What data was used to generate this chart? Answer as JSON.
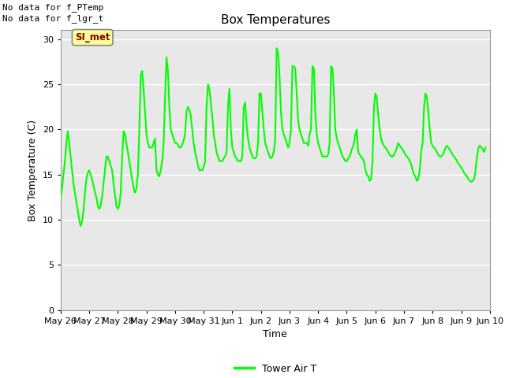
{
  "title": "Box Temperatures",
  "xlabel": "Time",
  "ylabel": "Box Temperature (C)",
  "ylim": [
    0,
    31
  ],
  "yticks": [
    0,
    5,
    10,
    15,
    20,
    25,
    30
  ],
  "bg_color": "#e8e8e8",
  "outer_bg": "#ffffff",
  "line_color": "#00ff00",
  "line_width": 1.5,
  "no_data1": "No data for f_PTemp",
  "no_data2": "No data for f_lgr_t",
  "si_met": "SI_met",
  "legend_label": "Tower Air T",
  "x_labels": [
    "May 26",
    "May 27",
    "May 28",
    "May 29",
    "May 30",
    "May 31",
    "Jun 1",
    "Jun 2",
    "Jun 3",
    "Jun 4",
    "Jun 5",
    "Jun 6",
    "Jun 7",
    "Jun 8",
    "Jun 9",
    "Jun 10"
  ],
  "xdata": [
    0.0,
    0.05,
    0.1,
    0.15,
    0.2,
    0.25,
    0.3,
    0.35,
    0.4,
    0.45,
    0.5,
    0.55,
    0.6,
    0.65,
    0.7,
    0.75,
    0.8,
    0.85,
    0.9,
    0.95,
    1.0,
    1.05,
    1.1,
    1.15,
    1.2,
    1.25,
    1.3,
    1.35,
    1.4,
    1.45,
    1.5,
    1.55,
    1.6,
    1.65,
    1.7,
    1.75,
    1.8,
    1.85,
    1.9,
    1.95,
    2.0,
    2.05,
    2.1,
    2.15,
    2.2,
    2.25,
    2.3,
    2.35,
    2.4,
    2.45,
    2.5,
    2.55,
    2.6,
    2.65,
    2.7,
    2.75,
    2.8,
    2.85,
    2.9,
    2.95,
    3.0,
    3.05,
    3.1,
    3.15,
    3.2,
    3.25,
    3.3,
    3.35,
    3.4,
    3.45,
    3.5,
    3.55,
    3.6,
    3.65,
    3.7,
    3.75,
    3.8,
    3.85,
    3.9,
    3.95,
    4.0,
    4.05,
    4.1,
    4.15,
    4.2,
    4.25,
    4.3,
    4.35,
    4.4,
    4.45,
    4.5,
    4.55,
    4.6,
    4.65,
    4.7,
    4.75,
    4.8,
    4.85,
    4.9,
    4.95,
    5.0,
    5.05,
    5.1,
    5.15,
    5.2,
    5.25,
    5.3,
    5.35,
    5.4,
    5.45,
    5.5,
    5.55,
    5.6,
    5.65,
    5.7,
    5.75,
    5.8,
    5.85,
    5.9,
    5.95,
    6.0,
    6.05,
    6.1,
    6.15,
    6.2,
    6.25,
    6.3,
    6.35,
    6.4,
    6.45,
    6.5,
    6.55,
    6.6,
    6.65,
    6.7,
    6.75,
    6.8,
    6.85,
    6.9,
    6.95,
    7.0,
    7.05,
    7.1,
    7.15,
    7.2,
    7.25,
    7.3,
    7.35,
    7.4,
    7.45,
    7.5,
    7.55,
    7.6,
    7.65,
    7.7,
    7.75,
    7.8,
    7.85,
    7.9,
    7.95,
    8.0,
    8.05,
    8.1,
    8.15,
    8.2,
    8.25,
    8.3,
    8.35,
    8.4,
    8.45,
    8.5,
    8.55,
    8.6,
    8.65,
    8.7,
    8.75,
    8.8,
    8.85,
    8.9,
    8.95,
    9.0,
    9.05,
    9.1,
    9.15,
    9.2,
    9.25,
    9.3,
    9.35,
    9.4,
    9.45,
    9.5,
    9.55,
    9.6,
    9.65,
    9.7,
    9.75,
    9.8,
    9.85,
    9.9,
    9.95,
    10.0,
    10.05,
    10.1,
    10.15,
    10.2,
    10.25,
    10.3,
    10.35,
    10.4,
    10.45,
    10.5,
    10.55,
    10.6,
    10.65,
    10.7,
    10.75,
    10.8,
    10.85,
    10.9,
    10.95,
    11.0,
    11.05,
    11.1,
    11.15,
    11.2,
    11.25,
    11.3,
    11.35,
    11.4,
    11.45,
    11.5,
    11.55,
    11.6,
    11.65,
    11.7,
    11.75,
    11.8,
    11.85,
    11.9,
    11.95,
    12.0,
    12.05,
    12.1,
    12.15,
    12.2,
    12.25,
    12.3,
    12.35,
    12.4,
    12.45,
    12.5,
    12.55,
    12.6,
    12.65,
    12.7,
    12.75,
    12.8,
    12.85,
    12.9,
    12.95,
    13.0,
    13.05,
    13.1,
    13.15,
    13.2,
    13.25,
    13.3,
    13.35,
    13.4,
    13.45,
    13.5,
    13.55,
    13.6,
    13.65,
    13.7,
    13.75,
    13.8,
    13.85,
    13.9,
    13.95,
    14.0,
    14.05,
    14.1,
    14.15,
    14.2,
    14.25,
    14.3,
    14.35,
    14.4,
    14.45,
    14.5,
    14.55,
    14.6,
    14.65,
    14.7,
    14.75,
    14.8,
    14.85,
    14.9,
    14.95,
    15.0
  ],
  "ydata": [
    12.5,
    13.5,
    15.0,
    16.5,
    18.5,
    19.8,
    18.5,
    17.0,
    15.5,
    14.0,
    13.0,
    12.0,
    11.0,
    10.0,
    9.3,
    9.8,
    11.0,
    13.0,
    14.5,
    15.2,
    15.5,
    15.0,
    14.5,
    13.8,
    13.0,
    12.5,
    11.5,
    11.2,
    11.5,
    12.5,
    14.0,
    15.5,
    17.0,
    17.0,
    16.5,
    16.0,
    15.5,
    14.0,
    12.8,
    11.5,
    11.2,
    11.5,
    13.0,
    16.8,
    19.8,
    19.5,
    18.5,
    17.5,
    16.5,
    15.5,
    14.5,
    13.5,
    13.0,
    13.5,
    15.0,
    19.8,
    26.0,
    26.5,
    24.5,
    22.0,
    19.5,
    18.5,
    18.0,
    18.0,
    18.0,
    18.5,
    19.0,
    15.5,
    15.0,
    14.8,
    15.5,
    16.5,
    18.5,
    23.5,
    28.0,
    26.5,
    22.5,
    20.0,
    19.5,
    19.0,
    18.5,
    18.5,
    18.3,
    18.0,
    18.0,
    18.3,
    18.8,
    19.5,
    22.0,
    22.5,
    22.2,
    21.5,
    20.0,
    18.5,
    17.5,
    16.8,
    16.0,
    15.5,
    15.5,
    15.5,
    15.8,
    16.5,
    22.5,
    25.0,
    24.5,
    23.0,
    21.5,
    19.5,
    18.5,
    17.5,
    17.0,
    16.5,
    16.5,
    16.5,
    16.8,
    17.0,
    17.5,
    22.5,
    24.5,
    20.0,
    18.0,
    17.5,
    17.0,
    16.8,
    16.5,
    16.5,
    16.5,
    17.0,
    22.5,
    23.0,
    20.5,
    19.0,
    18.0,
    17.5,
    17.0,
    16.8,
    16.8,
    17.0,
    18.5,
    24.0,
    24.0,
    22.0,
    20.0,
    18.5,
    18.0,
    17.5,
    17.0,
    16.8,
    17.0,
    17.5,
    19.0,
    29.0,
    28.5,
    26.0,
    22.0,
    20.0,
    19.5,
    19.0,
    18.5,
    18.0,
    18.5,
    20.0,
    27.0,
    27.0,
    26.8,
    24.0,
    21.0,
    20.0,
    19.5,
    19.0,
    18.5,
    18.5,
    18.5,
    18.2,
    19.5,
    20.0,
    27.0,
    26.8,
    22.0,
    19.5,
    18.5,
    18.0,
    17.5,
    17.0,
    17.0,
    17.0,
    17.0,
    17.2,
    18.5,
    27.0,
    26.8,
    24.0,
    20.0,
    19.0,
    18.5,
    18.0,
    17.5,
    17.0,
    16.8,
    16.5,
    16.5,
    16.8,
    17.0,
    17.5,
    18.0,
    18.5,
    19.5,
    20.0,
    17.5,
    17.2,
    17.0,
    16.8,
    16.5,
    15.5,
    15.0,
    14.8,
    14.3,
    14.5,
    16.5,
    22.5,
    24.0,
    23.5,
    21.5,
    20.0,
    19.0,
    18.5,
    18.2,
    18.0,
    17.8,
    17.5,
    17.2,
    17.0,
    17.0,
    17.2,
    17.5,
    18.0,
    18.5,
    18.2,
    18.0,
    17.8,
    17.5,
    17.2,
    17.0,
    16.8,
    16.5,
    16.2,
    15.5,
    15.0,
    14.8,
    14.3,
    14.5,
    15.5,
    17.5,
    18.5,
    22.5,
    24.0,
    23.5,
    22.0,
    20.0,
    18.5,
    18.2,
    18.0,
    17.8,
    17.5,
    17.2,
    17.0,
    17.0,
    17.2,
    17.5,
    18.0,
    18.2,
    18.0,
    17.8,
    17.5,
    17.2,
    17.0,
    16.8,
    16.5,
    16.2,
    16.0,
    15.8,
    15.5,
    15.2,
    15.0,
    14.8,
    14.5,
    14.3,
    14.2,
    14.3,
    14.5,
    15.5,
    17.0,
    18.0,
    18.2,
    18.0,
    17.8,
    17.5,
    18.0
  ]
}
